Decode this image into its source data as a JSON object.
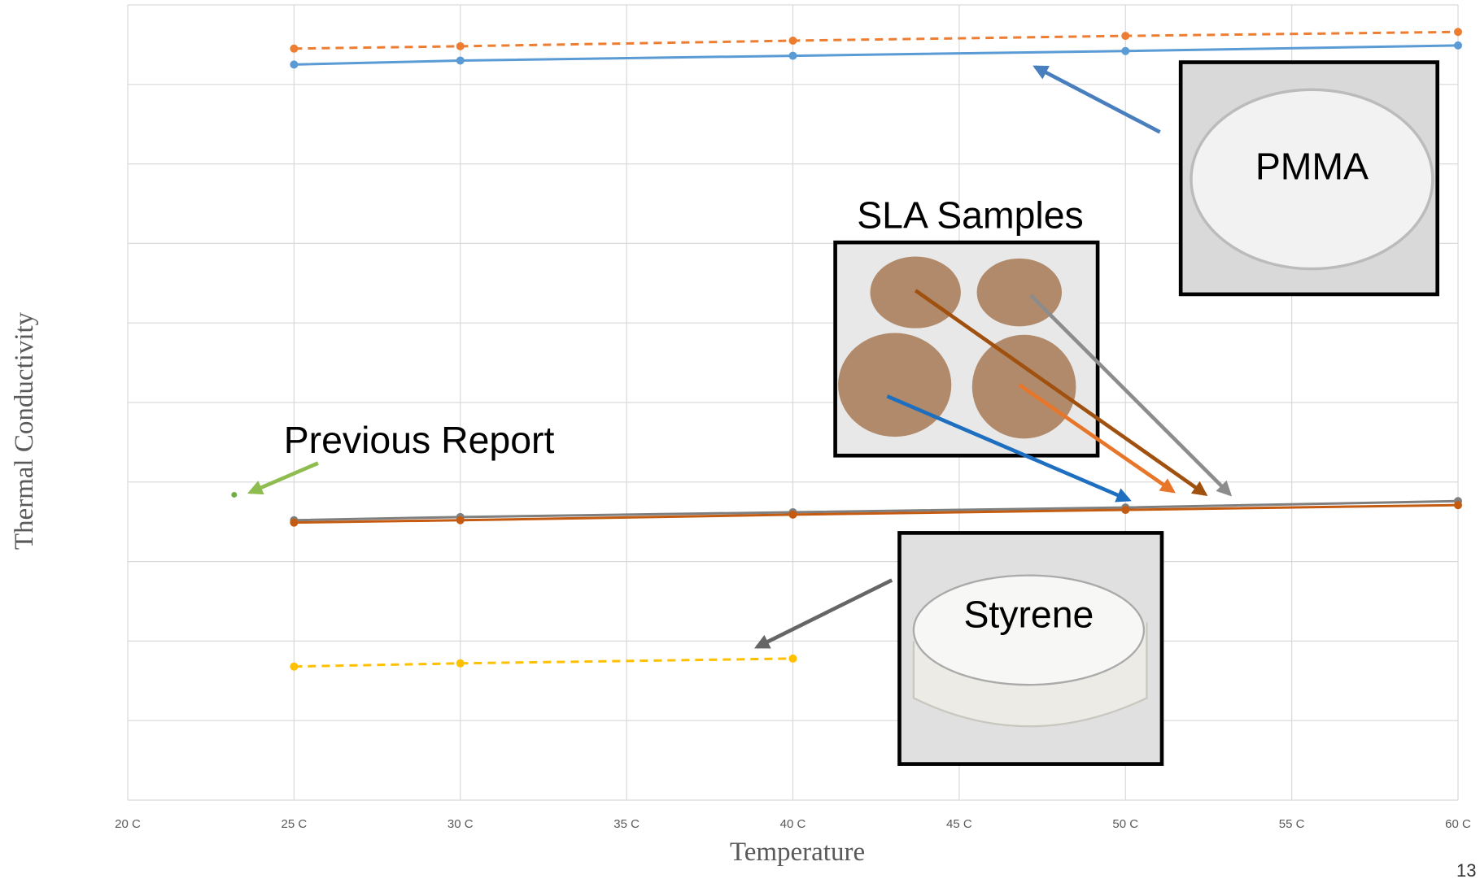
{
  "chart_data": {
    "type": "line",
    "x_axis_label": "Temperature",
    "y_axis_label": "Thermal Conductivity",
    "xlim": [
      20,
      60
    ],
    "xticks": [
      {
        "value": 20,
        "label": "20 C"
      },
      {
        "value": 25,
        "label": "25 C"
      },
      {
        "value": 30,
        "label": "30 C"
      },
      {
        "value": 35,
        "label": "35 C"
      },
      {
        "value": 40,
        "label": "40 C"
      },
      {
        "value": 45,
        "label": "45 C"
      },
      {
        "value": 50,
        "label": "50 C"
      },
      {
        "value": 55,
        "label": "55 C"
      },
      {
        "value": 60,
        "label": "60 C"
      }
    ],
    "ylim": [
      0,
      10
    ],
    "yticks": [
      0,
      1,
      2,
      3,
      4,
      5,
      6,
      7,
      8,
      9,
      10
    ],
    "y_tick_labels": false,
    "grid": true,
    "series": [
      {
        "color": "#5b9bd5",
        "dashed": false,
        "x": [
          25,
          30,
          40,
          50,
          60
        ],
        "values": [
          9.25,
          9.3,
          9.36,
          9.42,
          9.49
        ]
      },
      {
        "color": "#ed7d31",
        "dashed": true,
        "x": [
          25,
          30,
          40,
          50,
          60
        ],
        "values": [
          9.45,
          9.48,
          9.55,
          9.61,
          9.66
        ]
      },
      {
        "color": "#7f7f7f",
        "dashed": false,
        "x": [
          25,
          30,
          40,
          50,
          60
        ],
        "values": [
          3.52,
          3.56,
          3.62,
          3.68,
          3.76
        ]
      },
      {
        "color": "#c55a11",
        "dashed": false,
        "x": [
          25,
          30,
          40,
          50,
          60
        ],
        "values": [
          3.49,
          3.52,
          3.59,
          3.65,
          3.71
        ]
      },
      {
        "color": "#ffc000",
        "dashed": true,
        "x": [
          25,
          30,
          40
        ],
        "values": [
          1.68,
          1.72,
          1.78
        ]
      },
      {
        "color": "#70ad47",
        "dashed": false,
        "x": [
          23.2
        ],
        "values": [
          3.84
        ]
      }
    ],
    "annotations": [
      "PMMA",
      "SLA Samples",
      "Previous Report",
      "Styrene"
    ],
    "page_number": "13"
  }
}
